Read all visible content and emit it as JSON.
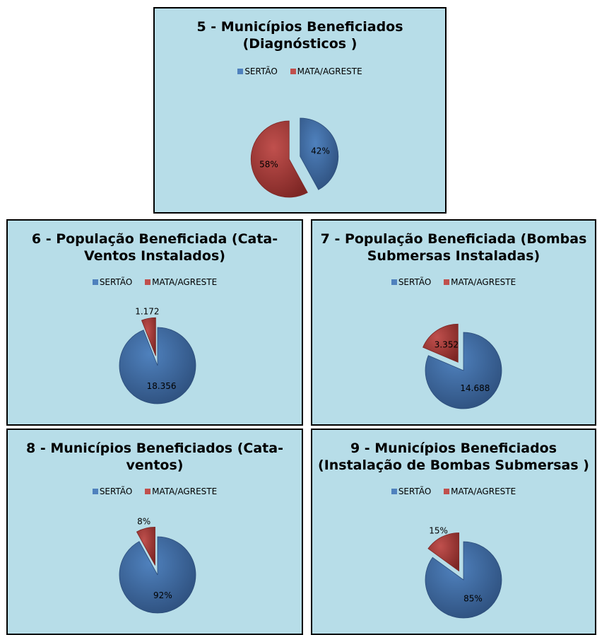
{
  "colors": {
    "sertao": "#4f81bd",
    "mata_agreste": "#c0504d"
  },
  "chart_data": [
    {
      "type": "pie",
      "title_line1": "5 - Municípios Beneficiados",
      "title_line2": "(Diagnósticos )",
      "legend": [
        "SERTÃO",
        "MATA/AGRESTE"
      ],
      "series": [
        {
          "values": [
            42,
            58
          ]
        }
      ],
      "labels": [
        "42%",
        "58%"
      ],
      "exploded": "both"
    },
    {
      "type": "pie",
      "title_line1": "6 - População Beneficiada (Cata-",
      "title_line2": "Ventos Instalados)",
      "legend": [
        "SERTÃO",
        "MATA/AGRESTE"
      ],
      "series": [
        {
          "values": [
            18356,
            1172
          ]
        }
      ],
      "labels": [
        "18.356",
        "1.172"
      ],
      "exploded": "MATA/AGRESTE"
    },
    {
      "type": "pie",
      "title_line1": "7 - População Beneficiada (Bombas",
      "title_line2": "Submersas Instaladas)",
      "legend": [
        "SERTÃO",
        "MATA/AGRESTE"
      ],
      "series": [
        {
          "values": [
            14688,
            3352
          ]
        }
      ],
      "labels": [
        "14.688",
        "3.352"
      ],
      "exploded": "MATA/AGRESTE"
    },
    {
      "type": "pie",
      "title_line1": "8 - Municípios Beneficiados (Cata-",
      "title_line2": "ventos)",
      "legend": [
        "SERTÃO",
        "MATA/AGRESTE"
      ],
      "series": [
        {
          "values": [
            92,
            8
          ]
        }
      ],
      "labels": [
        "92%",
        "8%"
      ],
      "exploded": "MATA/AGRESTE"
    },
    {
      "type": "pie",
      "title_line1": "9 - Municípios Beneficiados",
      "title_line2": "(Instalação de Bombas Submersas )",
      "legend": [
        "SERTÃO",
        "MATA/AGRESTE"
      ],
      "series": [
        {
          "values": [
            85,
            15
          ]
        }
      ],
      "labels": [
        "85%",
        "15%"
      ],
      "exploded": "MATA/AGRESTE"
    }
  ]
}
